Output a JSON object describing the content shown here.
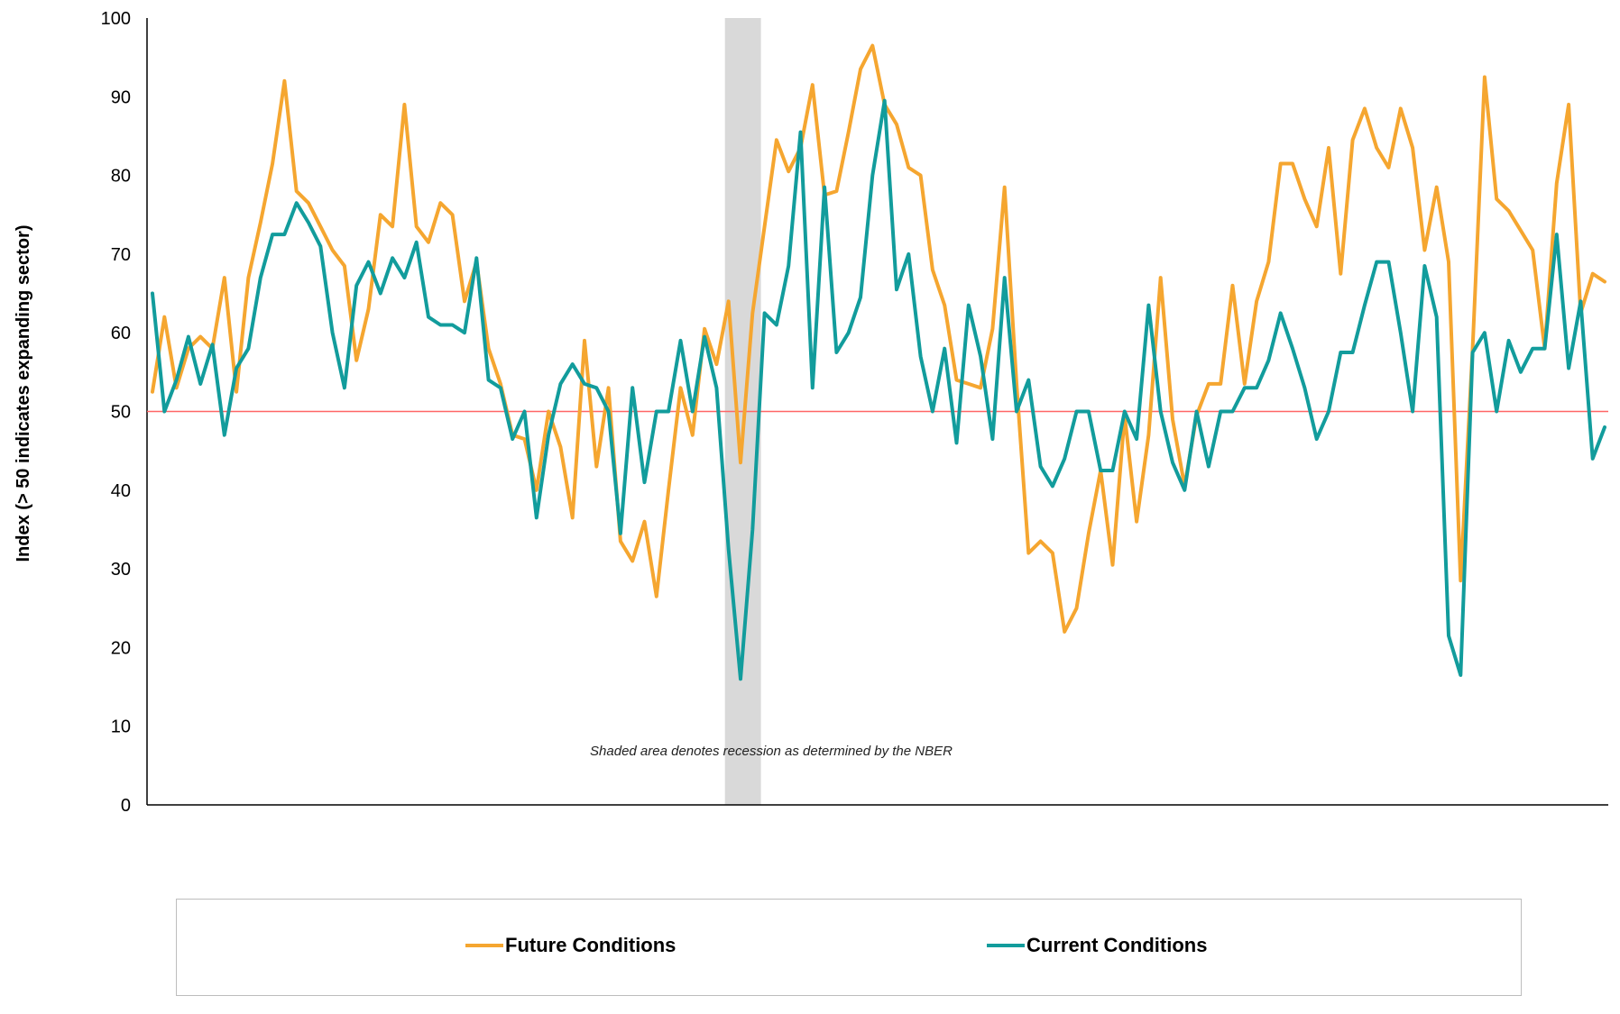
{
  "chart_data": {
    "type": "line",
    "title": "",
    "xlabel": "",
    "ylabel": "Index (> 50 indicates expanding sector)",
    "ylim": [
      0,
      100
    ],
    "yticks": [
      0,
      10,
      20,
      30,
      40,
      50,
      60,
      70,
      80,
      90,
      100
    ],
    "x_tick_labels": [],
    "reference_line": {
      "value": 50,
      "color": "#ff6666"
    },
    "recession_shading": {
      "start_index": 48,
      "end_index": 51,
      "color": "#d9d9d9"
    },
    "annotation": "Shaded area denotes recession as determined by the NBER",
    "legend_position": "bottom",
    "series": [
      {
        "name": "Future Conditions",
        "color": "#f5a630",
        "values": [
          52.5,
          62.0,
          53.0,
          58.0,
          59.5,
          58.0,
          67.0,
          52.5,
          67.0,
          74.0,
          81.5,
          92.0,
          78.0,
          76.5,
          73.5,
          70.5,
          68.5,
          56.5,
          63.0,
          75.0,
          73.5,
          89.0,
          73.5,
          71.5,
          76.5,
          75.0,
          64.0,
          69.0,
          58.0,
          53.5,
          47.0,
          46.5,
          40.0,
          50.0,
          45.5,
          36.5,
          59.0,
          43.0,
          53.0,
          33.5,
          31.0,
          36.0,
          26.5,
          40.0,
          53.0,
          47.0,
          60.5,
          56.0,
          64.0,
          43.5,
          62.5,
          73.5,
          84.5,
          80.5,
          83.5,
          91.5,
          77.5,
          78.0,
          85.5,
          93.5,
          96.5,
          89.0,
          86.5,
          81.0,
          80.0,
          68.0,
          63.5,
          54.0,
          53.5,
          53.0,
          60.5,
          78.5,
          53.5,
          32.0,
          33.5,
          32.0,
          22.0,
          25.0,
          34.5,
          42.5,
          30.5,
          49.5,
          36.0,
          47.0,
          67.0,
          49.0,
          40.5,
          49.5,
          53.5,
          53.5,
          66.0,
          53.5,
          64.0,
          69.0,
          81.5,
          81.5,
          77.0,
          73.5,
          83.5,
          67.5,
          84.5,
          88.5,
          83.5,
          81.0,
          88.5,
          83.5,
          70.5,
          78.5,
          69.0,
          28.5,
          58.0,
          92.5,
          77.0,
          75.5,
          73.0,
          70.5,
          58.0,
          79.0,
          89.0,
          62.5,
          67.5,
          66.5
        ]
      },
      {
        "name": "Current Conditions",
        "color": "#129c9c",
        "values": [
          65.0,
          50.0,
          54.0,
          59.5,
          53.5,
          58.5,
          47.0,
          55.5,
          58.0,
          67.0,
          72.5,
          72.5,
          76.5,
          74.0,
          71.0,
          60.0,
          53.0,
          66.0,
          69.0,
          65.0,
          69.5,
          67.0,
          71.5,
          62.0,
          61.0,
          61.0,
          60.0,
          69.5,
          54.0,
          53.0,
          46.5,
          50.0,
          36.5,
          47.0,
          53.5,
          56.0,
          53.5,
          53.0,
          50.0,
          34.5,
          53.0,
          41.0,
          50.0,
          50.0,
          59.0,
          50.0,
          59.5,
          53.0,
          32.5,
          16.0,
          35.0,
          62.5,
          61.0,
          68.5,
          85.5,
          53.0,
          78.5,
          57.5,
          60.0,
          64.5,
          80.0,
          89.5,
          65.5,
          70.0,
          57.0,
          50.0,
          58.0,
          46.0,
          63.5,
          57.0,
          46.5,
          67.0,
          50.0,
          54.0,
          43.0,
          40.5,
          44.0,
          50.0,
          50.0,
          42.5,
          42.5,
          50.0,
          46.5,
          63.5,
          50.0,
          43.5,
          40.0,
          50.0,
          43.0,
          50.0,
          50.0,
          53.0,
          53.0,
          56.5,
          62.5,
          58.0,
          53.0,
          46.5,
          50.0,
          57.5,
          57.5,
          63.5,
          69.0,
          69.0,
          60.0,
          50.0,
          68.5,
          62.0,
          21.5,
          16.5,
          57.5,
          60.0,
          50.0,
          59.0,
          55.0,
          58.0,
          58.0,
          72.5,
          55.5,
          64.0,
          44.0,
          48.0
        ]
      }
    ]
  }
}
